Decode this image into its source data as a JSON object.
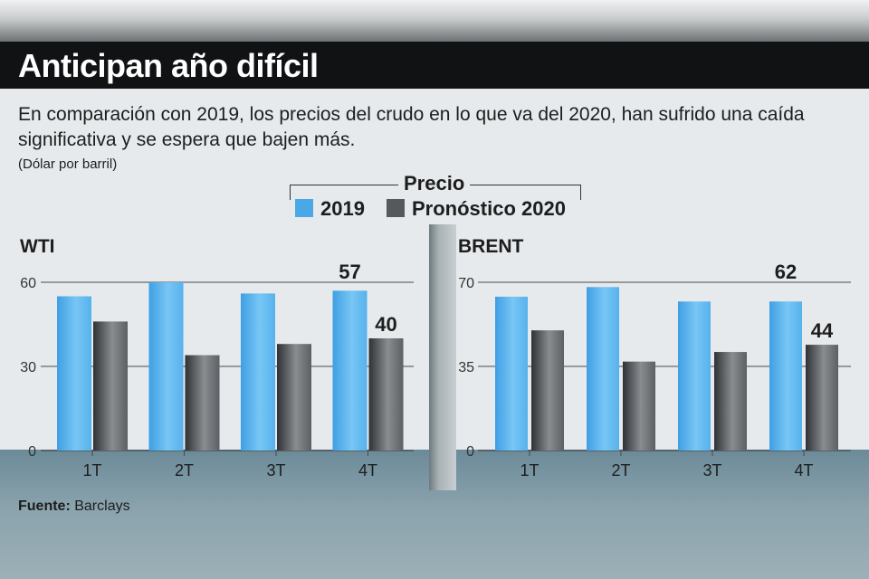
{
  "title": "Anticipan año difícil",
  "subtitle": "En comparación con 2019, los precios del crudo en lo que va del 2020, han sufrido una caída significativa y se espera que bajen más.",
  "unit": "(Dólar por barril)",
  "legend": {
    "title": "Precio",
    "items": [
      {
        "label": "2019",
        "color": "#4aa8e6"
      },
      {
        "label": "Pronóstico 2020",
        "color": "#55585c"
      }
    ]
  },
  "source": {
    "label": "Fuente:",
    "value": "Barclays"
  },
  "colors": {
    "bar_2019": "#4aa8e6",
    "bar_2020": "#55585c",
    "grid": "#4a4a4a",
    "text": "#1d1d1d"
  },
  "chart_data": [
    {
      "type": "bar",
      "title": "WTI",
      "categories": [
        "1T",
        "2T",
        "3T",
        "4T"
      ],
      "series": [
        {
          "name": "2019",
          "values": [
            55,
            60,
            56,
            57
          ]
        },
        {
          "name": "Pronóstico 2020",
          "values": [
            46,
            34,
            38,
            40
          ]
        }
      ],
      "yticks": [
        0,
        30,
        60
      ],
      "ylim": [
        0,
        60
      ],
      "data_labels": [
        {
          "series": 0,
          "index": 3,
          "text": "57"
        },
        {
          "series": 1,
          "index": 3,
          "text": "40"
        }
      ]
    },
    {
      "type": "bar",
      "title": "BRENT",
      "categories": [
        "1T",
        "2T",
        "3T",
        "4T"
      ],
      "series": [
        {
          "name": "2019",
          "values": [
            64,
            68,
            62,
            62
          ]
        },
        {
          "name": "Pronóstico 2020",
          "values": [
            50,
            37,
            41,
            44
          ]
        }
      ],
      "yticks": [
        0,
        35,
        70
      ],
      "ylim": [
        0,
        70
      ],
      "data_labels": [
        {
          "series": 0,
          "index": 3,
          "text": "62"
        },
        {
          "series": 1,
          "index": 3,
          "text": "44"
        }
      ]
    }
  ]
}
